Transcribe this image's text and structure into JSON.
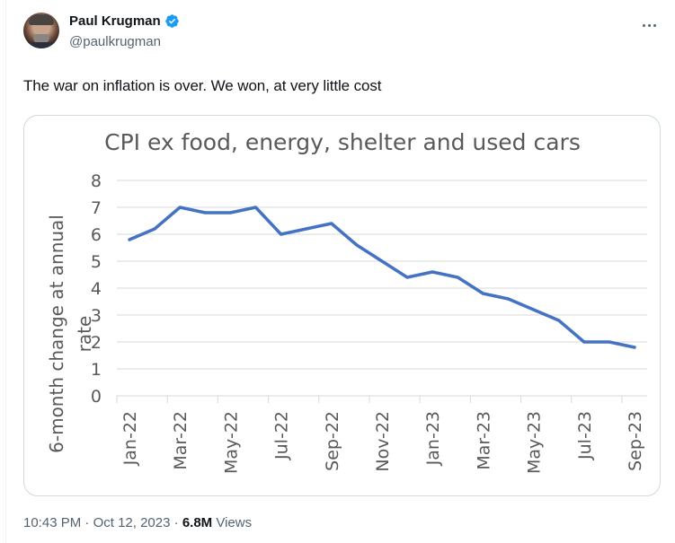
{
  "author": {
    "name": "Paul Krugman",
    "handle": "@paulkrugman",
    "verified": true,
    "verified_color": "#1d9bf0",
    "avatar_icon": "profile-photo"
  },
  "more_icon": "more-horizontal-icon",
  "tweet": {
    "text": "The war on inflation is over. We won, at very little cost"
  },
  "footer": {
    "time": "10:43 PM",
    "separator": " · ",
    "date": "Oct 12, 2023",
    "views_count": "6.8M",
    "views_label": " Views"
  },
  "chart_data": {
    "type": "line",
    "title": "CPI ex food, energy, shelter and used cars",
    "xlabel": "",
    "ylabel_lines": [
      "6-month change at annual",
      "rate"
    ],
    "ylabel": "6-month change at annual rate",
    "ylim": [
      0,
      8
    ],
    "yticks": [
      0,
      1,
      2,
      3,
      4,
      5,
      6,
      7,
      8
    ],
    "grid": true,
    "legend": "none",
    "line_color": "#4472c4",
    "x": [
      "Jan-22",
      "Feb-22",
      "Mar-22",
      "Apr-22",
      "May-22",
      "Jun-22",
      "Jul-22",
      "Aug-22",
      "Sep-22",
      "Oct-22",
      "Nov-22",
      "Dec-22",
      "Jan-23",
      "Feb-23",
      "Mar-23",
      "Apr-23",
      "May-23",
      "Jun-23",
      "Jul-23",
      "Aug-23",
      "Sep-23"
    ],
    "xtick_labels": [
      "Jan-22",
      "Mar-22",
      "May-22",
      "Jul-22",
      "Sep-22",
      "Nov-22",
      "Jan-23",
      "Mar-23",
      "May-23",
      "Jul-23",
      "Sep-23"
    ],
    "series": [
      {
        "name": "CPI ex food, energy, shelter and used cars",
        "values": [
          5.8,
          6.2,
          7.0,
          6.8,
          6.8,
          7.0,
          6.0,
          6.2,
          6.4,
          5.6,
          5.0,
          4.4,
          4.6,
          4.4,
          3.8,
          3.6,
          3.2,
          2.8,
          2.0,
          2.0,
          1.8
        ]
      }
    ]
  }
}
